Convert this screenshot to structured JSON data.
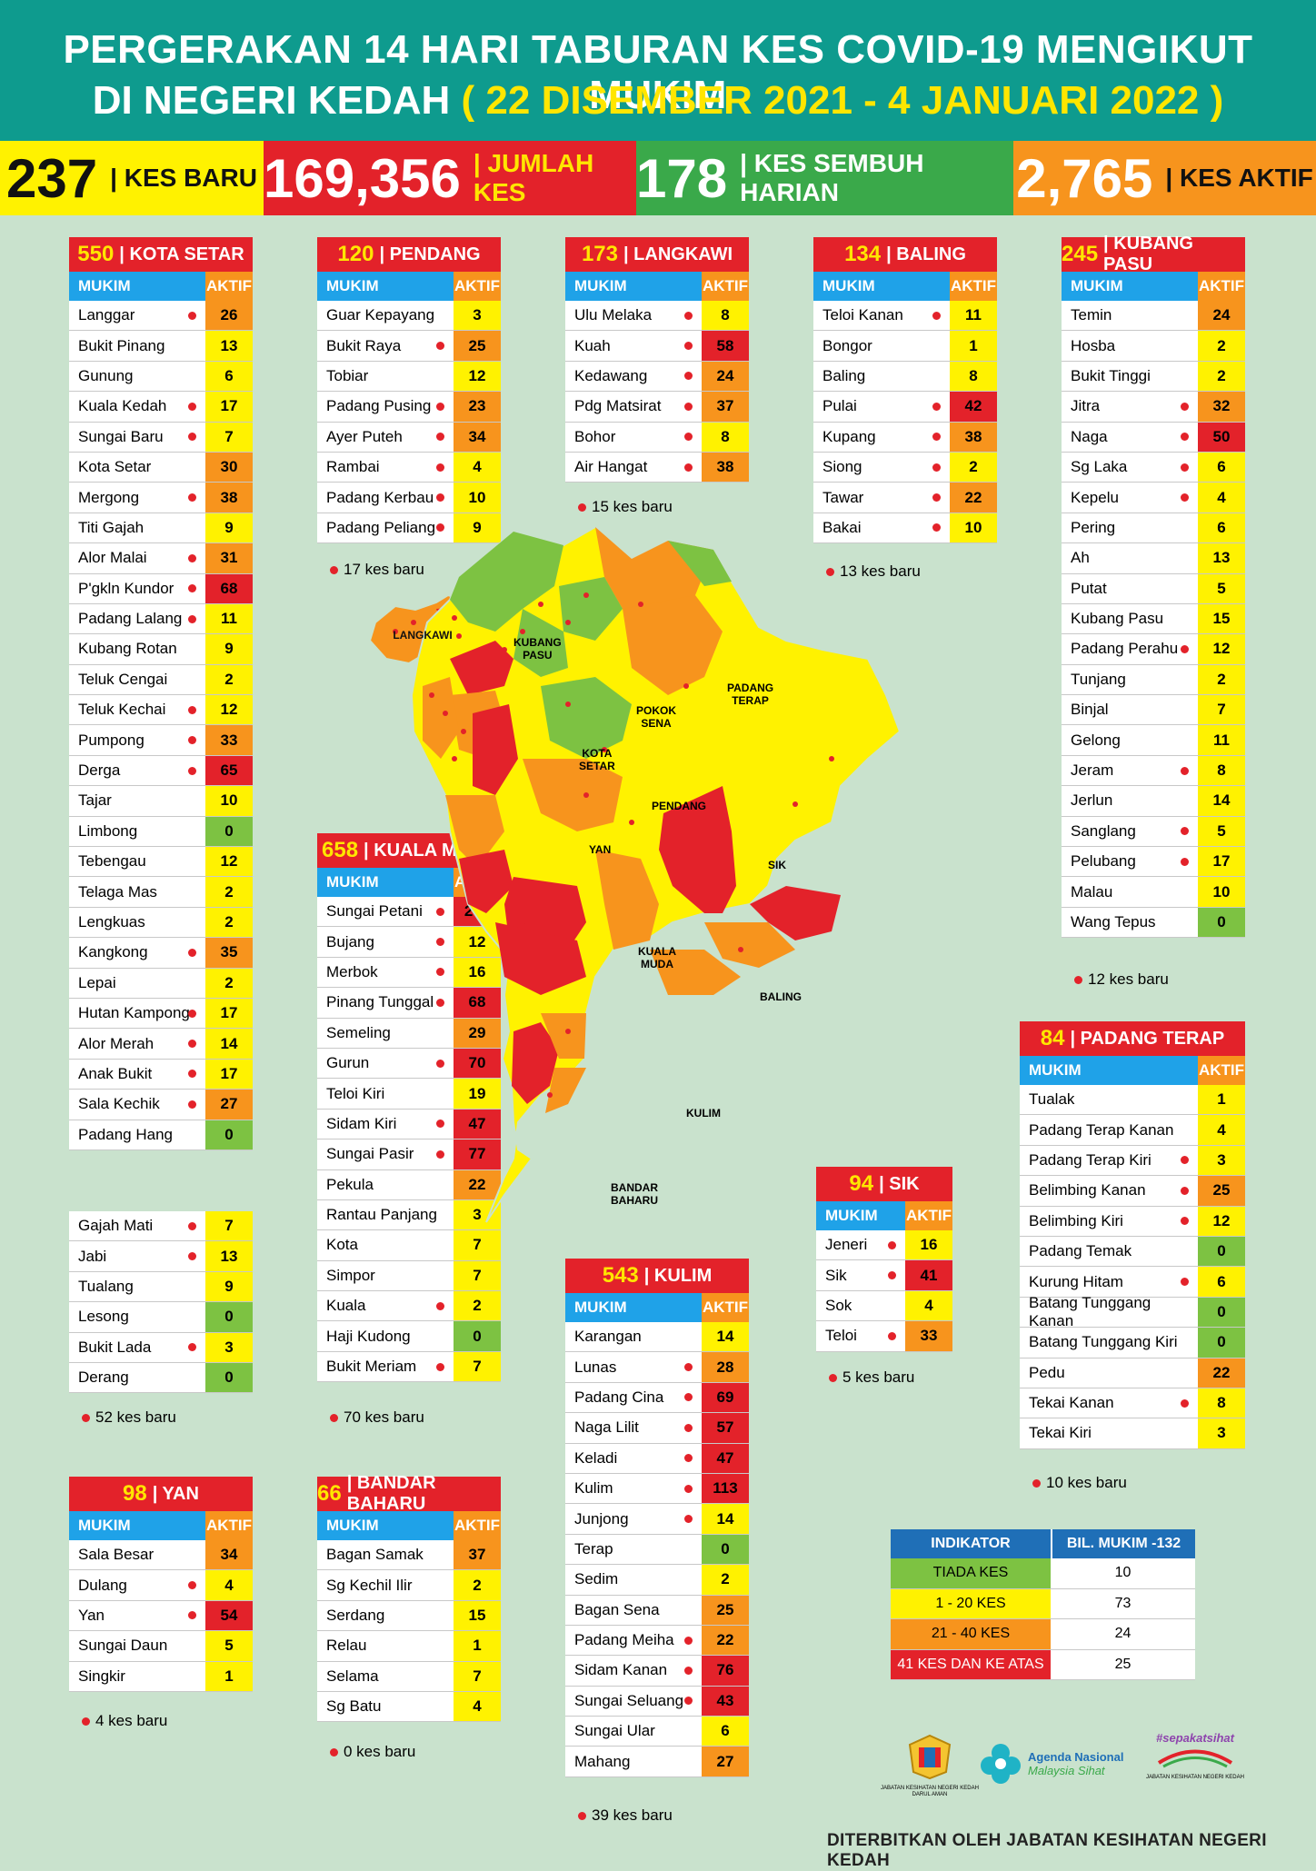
{
  "header": {
    "line1": "PERGERAKAN 14 HARI TABURAN KES COVID-19 MENGIKUT MUKIM",
    "line2_prefix": "DI NEGERI KEDAH ",
    "line2_dates": "( 22 DISEMBER 2021 - 4 JANUARI 2022 )"
  },
  "stats": [
    {
      "value": "237",
      "label": "| KES BARU",
      "bg": "#fff200",
      "color": "#111",
      "label_color": "#111"
    },
    {
      "value": "169,356",
      "label": "| JUMLAH KES",
      "bg": "#e3222a",
      "color": "#fff",
      "label_color": "#ffe600"
    },
    {
      "value": "178",
      "label": "| KES SEMBUH HARIAN",
      "bg": "#3aa94a",
      "color": "#fff",
      "label_color": "#fff"
    },
    {
      "value": "2,765",
      "label": "| KES AKTIF",
      "bg": "#f7941d",
      "color": "#fff",
      "label_color": "#111"
    }
  ],
  "col_mukim": "MUKIM",
  "col_aktif": "AKTIF",
  "colors": {
    "green": "#7dc242",
    "yellow": "#fff200",
    "orange": "#f7941d",
    "red": "#e3222a"
  },
  "tables": {
    "kota_setar": {
      "total": "550",
      "name": "| KOTA SETAR",
      "note": "52 kes baru",
      "rows": [
        [
          "Langgar",
          "26",
          1
        ],
        [
          "Bukit Pinang",
          "13",
          0
        ],
        [
          "Gunung",
          "6",
          0
        ],
        [
          "Kuala Kedah",
          "17",
          1
        ],
        [
          "Sungai Baru",
          "7",
          1
        ],
        [
          "Kota Setar",
          "30",
          0
        ],
        [
          "Mergong",
          "38",
          1
        ],
        [
          "Titi Gajah",
          "9",
          0
        ],
        [
          "Alor Malai",
          "31",
          1
        ],
        [
          "P'gkln Kundor",
          "68",
          1
        ],
        [
          "Padang Lalang",
          "11",
          1
        ],
        [
          "Kubang Rotan",
          "9",
          0
        ],
        [
          "Teluk Cengai",
          "2",
          0
        ],
        [
          "Teluk Kechai",
          "12",
          1
        ],
        [
          "Pumpong",
          "33",
          1
        ],
        [
          "Derga",
          "65",
          1
        ],
        [
          "Tajar",
          "10",
          0
        ],
        [
          "Limbong",
          "0",
          0
        ],
        [
          "Tebengau",
          "12",
          0
        ],
        [
          "Telaga Mas",
          "2",
          0
        ],
        [
          "Lengkuas",
          "2",
          0
        ],
        [
          "Kangkong",
          "35",
          1
        ],
        [
          "Lepai",
          "2",
          0
        ],
        [
          "Hutan Kampong",
          "17",
          1
        ],
        [
          "Alor Merah",
          "14",
          1
        ],
        [
          "Anak Bukit",
          "17",
          1
        ],
        [
          "Sala Kechik",
          "27",
          1
        ],
        [
          "Padang Hang",
          "0",
          0
        ]
      ],
      "rows2": [
        [
          "Gajah Mati",
          "7",
          1
        ],
        [
          "Jabi",
          "13",
          1
        ],
        [
          "Tualang",
          "9",
          0
        ],
        [
          "Lesong",
          "0",
          0
        ],
        [
          "Bukit Lada",
          "3",
          1
        ],
        [
          "Derang",
          "0",
          0
        ]
      ]
    },
    "pendang": {
      "total": "120",
      "name": "| PENDANG",
      "note": "17 kes baru",
      "rows": [
        [
          "Guar Kepayang",
          "3",
          0
        ],
        [
          "Bukit Raya",
          "25",
          1
        ],
        [
          "Tobiar",
          "12",
          0
        ],
        [
          "Padang Pusing",
          "23",
          1
        ],
        [
          "Ayer Puteh",
          "34",
          1
        ],
        [
          "Rambai",
          "4",
          1
        ],
        [
          "Padang Kerbau",
          "10",
          1
        ],
        [
          "Padang Peliang",
          "9",
          1
        ]
      ]
    },
    "langkawi": {
      "total": "173",
      "name": "| LANGKAWI",
      "note": "15 kes baru",
      "rows": [
        [
          "Ulu Melaka",
          "8",
          1
        ],
        [
          "Kuah",
          "58",
          1
        ],
        [
          "Kedawang",
          "24",
          1
        ],
        [
          "Pdg Matsirat",
          "37",
          1
        ],
        [
          "Bohor",
          "8",
          1
        ],
        [
          "Air Hangat",
          "38",
          1
        ]
      ]
    },
    "baling": {
      "total": "134",
      "name": "| BALING",
      "note": "13 kes baru",
      "rows": [
        [
          "Teloi Kanan",
          "11",
          1
        ],
        [
          "Bongor",
          "1",
          0
        ],
        [
          "Baling",
          "8",
          0
        ],
        [
          "Pulai",
          "42",
          1
        ],
        [
          "Kupang",
          "38",
          1
        ],
        [
          "Siong",
          "2",
          1
        ],
        [
          "Tawar",
          "22",
          1
        ],
        [
          "Bakai",
          "10",
          1
        ]
      ]
    },
    "kubang_pasu": {
      "total": "245",
      "name": "| KUBANG PASU",
      "note": "12 kes baru",
      "rows": [
        [
          "Temin",
          "24",
          0
        ],
        [
          "Hosba",
          "2",
          0
        ],
        [
          "Bukit Tinggi",
          "2",
          0
        ],
        [
          "Jitra",
          "32",
          1
        ],
        [
          "Naga",
          "50",
          1
        ],
        [
          "Sg Laka",
          "6",
          1
        ],
        [
          "Kepelu",
          "4",
          1
        ],
        [
          "Pering",
          "6",
          0
        ],
        [
          "Ah",
          "13",
          0
        ],
        [
          "Putat",
          "5",
          0
        ],
        [
          "Kubang Pasu",
          "15",
          0
        ],
        [
          "Padang Perahu",
          "12",
          1
        ],
        [
          "Tunjang",
          "2",
          0
        ],
        [
          "Binjal",
          "7",
          0
        ],
        [
          "Gelong",
          "11",
          0
        ],
        [
          "Jeram",
          "8",
          1
        ],
        [
          "Jerlun",
          "14",
          0
        ],
        [
          "Sanglang",
          "5",
          1
        ],
        [
          "Pelubang",
          "17",
          1
        ],
        [
          "Malau",
          "10",
          0
        ],
        [
          "Wang Tepus",
          "0",
          0
        ]
      ]
    },
    "kuala_muda": {
      "total": "658",
      "name": "| KUALA MUDA",
      "note": "70 kes baru",
      "rows": [
        [
          "Sungai Petani",
          "272",
          1
        ],
        [
          "Bujang",
          "12",
          1
        ],
        [
          "Merbok",
          "16",
          1
        ],
        [
          "Pinang Tunggal",
          "68",
          1
        ],
        [
          "Semeling",
          "29",
          0
        ],
        [
          "Gurun",
          "70",
          1
        ],
        [
          "Teloi Kiri",
          "19",
          0
        ],
        [
          "Sidam Kiri",
          "47",
          1
        ],
        [
          "Sungai Pasir",
          "77",
          1
        ],
        [
          "Pekula",
          "22",
          0
        ],
        [
          "Rantau Panjang",
          "3",
          0
        ],
        [
          "Kota",
          "7",
          0
        ],
        [
          "Simpor",
          "7",
          0
        ],
        [
          "Kuala",
          "2",
          1
        ],
        [
          "Haji Kudong",
          "0",
          0
        ],
        [
          "Bukit Meriam",
          "7",
          1
        ]
      ]
    },
    "padang_terap": {
      "total": "84",
      "name": "| PADANG TERAP",
      "note": "10 kes baru",
      "rows": [
        [
          "Tualak",
          "1",
          0
        ],
        [
          "Padang Terap Kanan",
          "4",
          0
        ],
        [
          "Padang Terap Kiri",
          "3",
          1
        ],
        [
          "Belimbing Kanan",
          "25",
          1
        ],
        [
          "Belimbing Kiri",
          "12",
          1
        ],
        [
          "Padang Temak",
          "0",
          0
        ],
        [
          "Kurung Hitam",
          "6",
          1
        ],
        [
          "Batang Tunggang Kanan",
          "0",
          0
        ],
        [
          "Batang Tunggang Kiri",
          "0",
          0
        ],
        [
          "Pedu",
          "22",
          0
        ],
        [
          "Tekai Kanan",
          "8",
          1
        ],
        [
          "Tekai Kiri",
          "3",
          0
        ]
      ]
    },
    "sik": {
      "total": "94",
      "name": "| SIK",
      "note": "5 kes baru",
      "rows": [
        [
          "Jeneri",
          "16",
          1
        ],
        [
          "Sik",
          "41",
          1
        ],
        [
          "Sok",
          "4",
          0
        ],
        [
          "Teloi",
          "33",
          1
        ]
      ]
    },
    "kulim": {
      "total": "543",
      "name": "| KULIM",
      "note": "39 kes baru",
      "rows": [
        [
          "Karangan",
          "14",
          0
        ],
        [
          "Lunas",
          "28",
          1
        ],
        [
          "Padang Cina",
          "69",
          1
        ],
        [
          "Naga Lilit",
          "57",
          1
        ],
        [
          "Keladi",
          "47",
          1
        ],
        [
          "Kulim",
          "113",
          1
        ],
        [
          "Junjong",
          "14",
          1
        ],
        [
          "Terap",
          "0",
          0
        ],
        [
          "Sedim",
          "2",
          0
        ],
        [
          "Bagan Sena",
          "25",
          0
        ],
        [
          "Padang Meiha",
          "22",
          1
        ],
        [
          "Sidam Kanan",
          "76",
          1
        ],
        [
          "Sungai Seluang",
          "43",
          1
        ],
        [
          "Sungai Ular",
          "6",
          0
        ],
        [
          "Mahang",
          "27",
          0
        ]
      ]
    },
    "yan": {
      "total": "98",
      "name": "| YAN",
      "note": "4 kes baru",
      "rows": [
        [
          "Sala Besar",
          "34",
          0
        ],
        [
          "Dulang",
          "4",
          1
        ],
        [
          "Yan",
          "54",
          1
        ],
        [
          "Sungai Daun",
          "5",
          0
        ],
        [
          "Singkir",
          "1",
          0
        ]
      ]
    },
    "bandar_baharu": {
      "total": "66",
      "name": "| BANDAR BAHARU",
      "note": "0 kes baru",
      "rows": [
        [
          "Bagan Samak",
          "37",
          0
        ],
        [
          "Sg Kechil Ilir",
          "2",
          0
        ],
        [
          "Serdang",
          "15",
          0
        ],
        [
          "Relau",
          "1",
          0
        ],
        [
          "Selama",
          "7",
          0
        ],
        [
          "Sg Batu",
          "4",
          0
        ]
      ]
    }
  },
  "map_labels": [
    {
      "text": "LANGKAWI"
    },
    {
      "text": "KUBANG\nPASU"
    },
    {
      "text": "PADANG\nTERAP"
    },
    {
      "text": "POKOK\nSENA"
    },
    {
      "text": "KOTA\nSETAR"
    },
    {
      "text": "PENDANG"
    },
    {
      "text": "YAN"
    },
    {
      "text": "SIK"
    },
    {
      "text": "KUALA\nMUDA"
    },
    {
      "text": "BALING"
    },
    {
      "text": "KULIM"
    },
    {
      "text": "BANDAR\nBAHARU"
    }
  ],
  "legend": {
    "h1": "INDIKATOR",
    "h2": "BIL. MUKIM -132",
    "rows": [
      {
        "label": "TIADA KES",
        "value": "10",
        "bg": "#7dc242"
      },
      {
        "label": "1 - 20 KES",
        "value": "73",
        "bg": "#fff200"
      },
      {
        "label": "21 - 40 KES",
        "value": "24",
        "bg": "#f7941d"
      },
      {
        "label": "41 KES DAN KE ATAS",
        "value": "25",
        "bg": "#e3222a"
      }
    ]
  },
  "logos": {
    "jkn": "JABATAN KESIHATAN NEGERI KEDAH DARUL AMAN",
    "agenda1": "Agenda Nasional",
    "agenda2": "Malaysia Sihat",
    "sepakat": "#sepakatsihat",
    "sepakat_sub": "JABATAN KESIHATAN NEGERI KEDAH"
  },
  "footer": "DITERBITKAN OLEH JABATAN KESIHATAN NEGERI KEDAH"
}
